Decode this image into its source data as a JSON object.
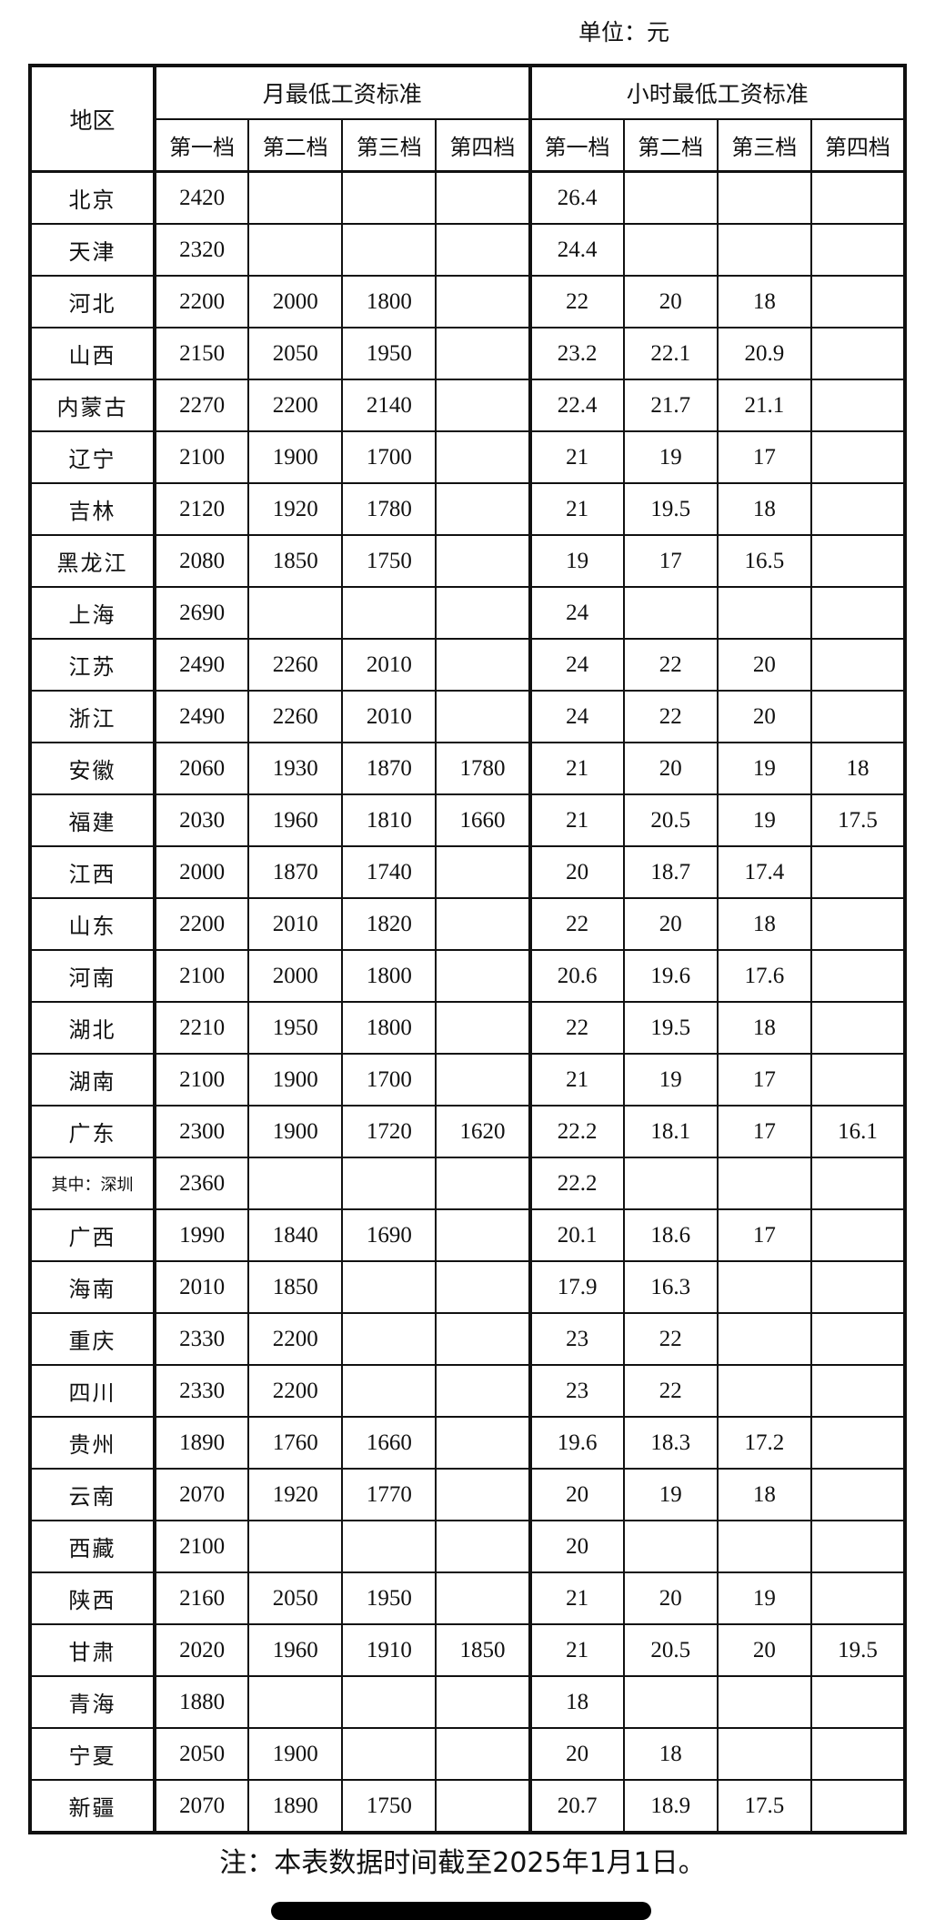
{
  "unit_label": "单位：元",
  "headers": {
    "region": "地区",
    "monthly": "月最低工资标准",
    "hourly": "小时最低工资标准",
    "tiers": [
      "第一档",
      "第二档",
      "第三档",
      "第四档"
    ]
  },
  "rows": [
    {
      "region": "北京",
      "monthly": [
        "2420",
        "",
        "",
        ""
      ],
      "hourly": [
        "26.4",
        "",
        "",
        ""
      ]
    },
    {
      "region": "天津",
      "monthly": [
        "2320",
        "",
        "",
        ""
      ],
      "hourly": [
        "24.4",
        "",
        "",
        ""
      ]
    },
    {
      "region": "河北",
      "monthly": [
        "2200",
        "2000",
        "1800",
        ""
      ],
      "hourly": [
        "22",
        "20",
        "18",
        ""
      ]
    },
    {
      "region": "山西",
      "monthly": [
        "2150",
        "2050",
        "1950",
        ""
      ],
      "hourly": [
        "23.2",
        "22.1",
        "20.9",
        ""
      ]
    },
    {
      "region": "内蒙古",
      "monthly": [
        "2270",
        "2200",
        "2140",
        ""
      ],
      "hourly": [
        "22.4",
        "21.7",
        "21.1",
        ""
      ]
    },
    {
      "region": "辽宁",
      "monthly": [
        "2100",
        "1900",
        "1700",
        ""
      ],
      "hourly": [
        "21",
        "19",
        "17",
        ""
      ]
    },
    {
      "region": "吉林",
      "monthly": [
        "2120",
        "1920",
        "1780",
        ""
      ],
      "hourly": [
        "21",
        "19.5",
        "18",
        ""
      ]
    },
    {
      "region": "黑龙江",
      "monthly": [
        "2080",
        "1850",
        "1750",
        ""
      ],
      "hourly": [
        "19",
        "17",
        "16.5",
        ""
      ]
    },
    {
      "region": "上海",
      "monthly": [
        "2690",
        "",
        "",
        ""
      ],
      "hourly": [
        "24",
        "",
        "",
        ""
      ]
    },
    {
      "region": "江苏",
      "monthly": [
        "2490",
        "2260",
        "2010",
        ""
      ],
      "hourly": [
        "24",
        "22",
        "20",
        ""
      ]
    },
    {
      "region": "浙江",
      "monthly": [
        "2490",
        "2260",
        "2010",
        ""
      ],
      "hourly": [
        "24",
        "22",
        "20",
        ""
      ]
    },
    {
      "region": "安徽",
      "monthly": [
        "2060",
        "1930",
        "1870",
        "1780"
      ],
      "hourly": [
        "21",
        "20",
        "19",
        "18"
      ]
    },
    {
      "region": "福建",
      "monthly": [
        "2030",
        "1960",
        "1810",
        "1660"
      ],
      "hourly": [
        "21",
        "20.5",
        "19",
        "17.5"
      ]
    },
    {
      "region": "江西",
      "monthly": [
        "2000",
        "1870",
        "1740",
        ""
      ],
      "hourly": [
        "20",
        "18.7",
        "17.4",
        ""
      ]
    },
    {
      "region": "山东",
      "monthly": [
        "2200",
        "2010",
        "1820",
        ""
      ],
      "hourly": [
        "22",
        "20",
        "18",
        ""
      ]
    },
    {
      "region": "河南",
      "monthly": [
        "2100",
        "2000",
        "1800",
        ""
      ],
      "hourly": [
        "20.6",
        "19.6",
        "17.6",
        ""
      ]
    },
    {
      "region": "湖北",
      "monthly": [
        "2210",
        "1950",
        "1800",
        ""
      ],
      "hourly": [
        "22",
        "19.5",
        "18",
        ""
      ]
    },
    {
      "region": "湖南",
      "monthly": [
        "2100",
        "1900",
        "1700",
        ""
      ],
      "hourly": [
        "21",
        "19",
        "17",
        ""
      ]
    },
    {
      "region": "广东",
      "monthly": [
        "2300",
        "1900",
        "1720",
        "1620"
      ],
      "hourly": [
        "22.2",
        "18.1",
        "17",
        "16.1"
      ]
    },
    {
      "region": "其中：深圳",
      "monthly": [
        "2360",
        "",
        "",
        ""
      ],
      "hourly": [
        "22.2",
        "",
        "",
        ""
      ]
    },
    {
      "region": "广西",
      "monthly": [
        "1990",
        "1840",
        "1690",
        ""
      ],
      "hourly": [
        "20.1",
        "18.6",
        "17",
        ""
      ]
    },
    {
      "region": "海南",
      "monthly": [
        "2010",
        "1850",
        "",
        ""
      ],
      "hourly": [
        "17.9",
        "16.3",
        "",
        ""
      ]
    },
    {
      "region": "重庆",
      "monthly": [
        "2330",
        "2200",
        "",
        ""
      ],
      "hourly": [
        "23",
        "22",
        "",
        ""
      ]
    },
    {
      "region": "四川",
      "monthly": [
        "2330",
        "2200",
        "",
        ""
      ],
      "hourly": [
        "23",
        "22",
        "",
        ""
      ]
    },
    {
      "region": "贵州",
      "monthly": [
        "1890",
        "1760",
        "1660",
        ""
      ],
      "hourly": [
        "19.6",
        "18.3",
        "17.2",
        ""
      ]
    },
    {
      "region": "云南",
      "monthly": [
        "2070",
        "1920",
        "1770",
        ""
      ],
      "hourly": [
        "20",
        "19",
        "18",
        ""
      ]
    },
    {
      "region": "西藏",
      "monthly": [
        "2100",
        "",
        "",
        ""
      ],
      "hourly": [
        "20",
        "",
        "",
        ""
      ]
    },
    {
      "region": "陕西",
      "monthly": [
        "2160",
        "2050",
        "1950",
        ""
      ],
      "hourly": [
        "21",
        "20",
        "19",
        ""
      ]
    },
    {
      "region": "甘肃",
      "monthly": [
        "2020",
        "1960",
        "1910",
        "1850"
      ],
      "hourly": [
        "21",
        "20.5",
        "20",
        "19.5"
      ]
    },
    {
      "region": "青海",
      "monthly": [
        "1880",
        "",
        "",
        ""
      ],
      "hourly": [
        "18",
        "",
        "",
        ""
      ]
    },
    {
      "region": "宁夏",
      "monthly": [
        "2050",
        "1900",
        "",
        ""
      ],
      "hourly": [
        "20",
        "18",
        "",
        ""
      ]
    },
    {
      "region": "新疆",
      "monthly": [
        "2070",
        "1890",
        "1750",
        ""
      ],
      "hourly": [
        "20.7",
        "18.9",
        "17.5",
        ""
      ]
    }
  ],
  "note": "注：本表数据时间截至2025年1月1日。"
}
